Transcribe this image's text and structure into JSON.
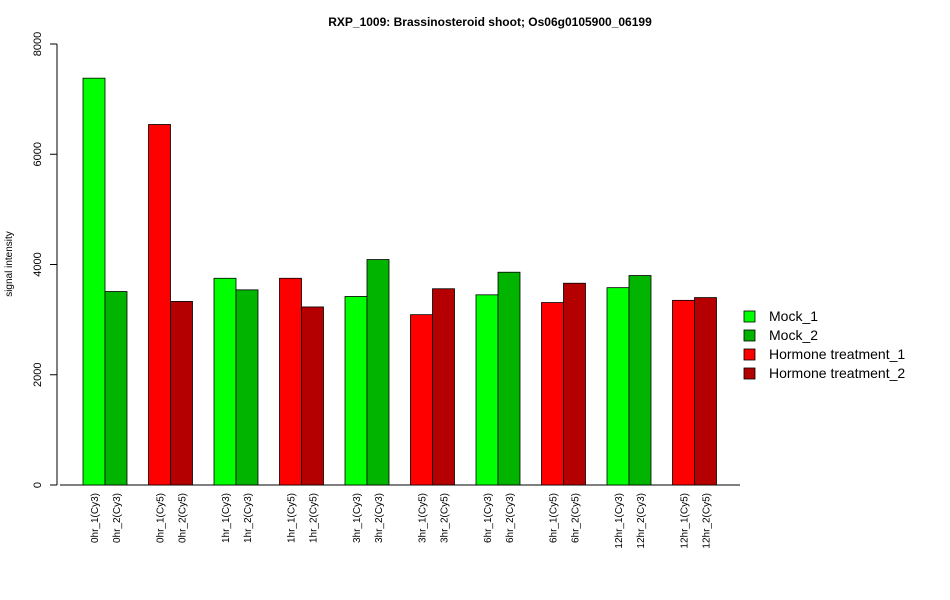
{
  "chart_data": {
    "type": "bar",
    "title": "RXP_1009: Brassinosteroid shoot; Os06g0105900_06199",
    "ylabel": "signal intensity",
    "xlabel": "",
    "ylim": [
      0,
      8000
    ],
    "yticks": [
      0,
      2000,
      4000,
      6000,
      8000
    ],
    "grid": false,
    "legend_position": "right",
    "series": [
      {
        "name": "Mock_1",
        "color": "#00FF00"
      },
      {
        "name": "Mock_2",
        "color": "#00B400"
      },
      {
        "name": "Hormone treatment_1",
        "color": "#FF0000"
      },
      {
        "name": "Hormone treatment_2",
        "color": "#B40000"
      }
    ],
    "bars": [
      {
        "label": "0hr_1(Cy3)",
        "value": 7380,
        "series": 0
      },
      {
        "label": "0hr_2(Cy3)",
        "value": 3510,
        "series": 1
      },
      {
        "label": "0hr_1(Cy5)",
        "value": 6540,
        "series": 2
      },
      {
        "label": "0hr_2(Cy5)",
        "value": 3330,
        "series": 3
      },
      {
        "label": "1hr_1(Cy3)",
        "value": 3750,
        "series": 0
      },
      {
        "label": "1hr_2(Cy3)",
        "value": 3540,
        "series": 1
      },
      {
        "label": "1hr_1(Cy5)",
        "value": 3750,
        "series": 2
      },
      {
        "label": "1hr_2(Cy5)",
        "value": 3230,
        "series": 3
      },
      {
        "label": "3hr_1(Cy3)",
        "value": 3420,
        "series": 0
      },
      {
        "label": "3hr_2(Cy3)",
        "value": 4090,
        "series": 1
      },
      {
        "label": "3hr_1(Cy5)",
        "value": 3090,
        "series": 2
      },
      {
        "label": "3hr_2(Cy5)",
        "value": 3560,
        "series": 3
      },
      {
        "label": "6hr_1(Cy3)",
        "value": 3450,
        "series": 0
      },
      {
        "label": "6hr_2(Cy3)",
        "value": 3860,
        "series": 1
      },
      {
        "label": "6hr_1(Cy5)",
        "value": 3310,
        "series": 2
      },
      {
        "label": "6hr_2(Cy5)",
        "value": 3660,
        "series": 3
      },
      {
        "label": "12hr_1(Cy3)",
        "value": 3580,
        "series": 0
      },
      {
        "label": "12hr_2(Cy3)",
        "value": 3800,
        "series": 1
      },
      {
        "label": "12hr_1(Cy5)",
        "value": 3350,
        "series": 2
      },
      {
        "label": "12hr_2(Cy5)",
        "value": 3400,
        "series": 3
      }
    ]
  }
}
